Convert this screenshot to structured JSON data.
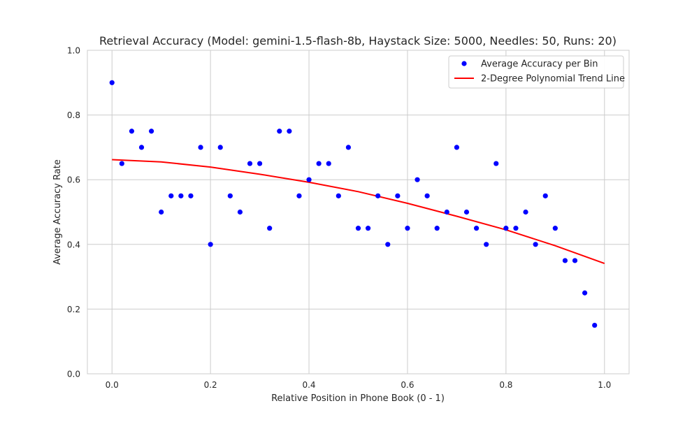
{
  "chart_data": {
    "type": "scatter",
    "title": "Retrieval Accuracy (Model: gemini-1.5-flash-8b, Haystack Size: 5000, Needles: 50, Runs: 20)",
    "xlabel": "Relative Position in Phone Book (0 - 1)",
    "ylabel": "Average Accuracy Rate",
    "xlim": [
      -0.05,
      1.05
    ],
    "ylim": [
      0.0,
      1.0
    ],
    "xticks": [
      0.0,
      0.2,
      0.4,
      0.6,
      0.8,
      1.0
    ],
    "yticks": [
      0.0,
      0.2,
      0.4,
      0.6,
      0.8,
      1.0
    ],
    "xtick_labels": [
      "0.0",
      "0.2",
      "0.4",
      "0.6",
      "0.8",
      "1.0"
    ],
    "ytick_labels": [
      "0.0",
      "0.2",
      "0.4",
      "0.6",
      "0.8",
      "1.0"
    ],
    "grid": true,
    "legend_position": "top-right",
    "series": [
      {
        "name": "Average Accuracy per Bin",
        "kind": "scatter",
        "color": "#0000ff",
        "x": [
          0.0,
          0.02,
          0.04,
          0.06,
          0.08,
          0.1,
          0.12,
          0.14,
          0.16,
          0.18,
          0.2,
          0.22,
          0.24,
          0.26,
          0.28,
          0.3,
          0.32,
          0.34,
          0.36,
          0.38,
          0.4,
          0.42,
          0.44,
          0.46,
          0.48,
          0.5,
          0.52,
          0.54,
          0.56,
          0.58,
          0.6,
          0.62,
          0.64,
          0.66,
          0.68,
          0.7,
          0.72,
          0.74,
          0.76,
          0.78,
          0.8,
          0.82,
          0.84,
          0.86,
          0.88,
          0.9,
          0.92,
          0.94,
          0.96,
          0.98
        ],
        "y": [
          0.9,
          0.65,
          0.75,
          0.7,
          0.75,
          0.5,
          0.55,
          0.55,
          0.55,
          0.7,
          0.4,
          0.7,
          0.55,
          0.5,
          0.65,
          0.65,
          0.45,
          0.75,
          0.75,
          0.55,
          0.6,
          0.65,
          0.65,
          0.55,
          0.7,
          0.45,
          0.45,
          0.55,
          0.4,
          0.55,
          0.45,
          0.6,
          0.55,
          0.45,
          0.5,
          0.7,
          0.5,
          0.45,
          0.4,
          0.65,
          0.45,
          0.45,
          0.5,
          0.4,
          0.55,
          0.45,
          0.35,
          0.35,
          0.25,
          0.15
        ]
      },
      {
        "name": "2-Degree Polynomial Trend Line",
        "kind": "line",
        "color": "#ff0000",
        "x": [
          0.0,
          0.1,
          0.2,
          0.3,
          0.4,
          0.5,
          0.6,
          0.7,
          0.8,
          0.9,
          1.0
        ],
        "y": [
          0.662,
          0.655,
          0.639,
          0.617,
          0.592,
          0.563,
          0.527,
          0.487,
          0.445,
          0.396,
          0.341
        ]
      }
    ]
  }
}
